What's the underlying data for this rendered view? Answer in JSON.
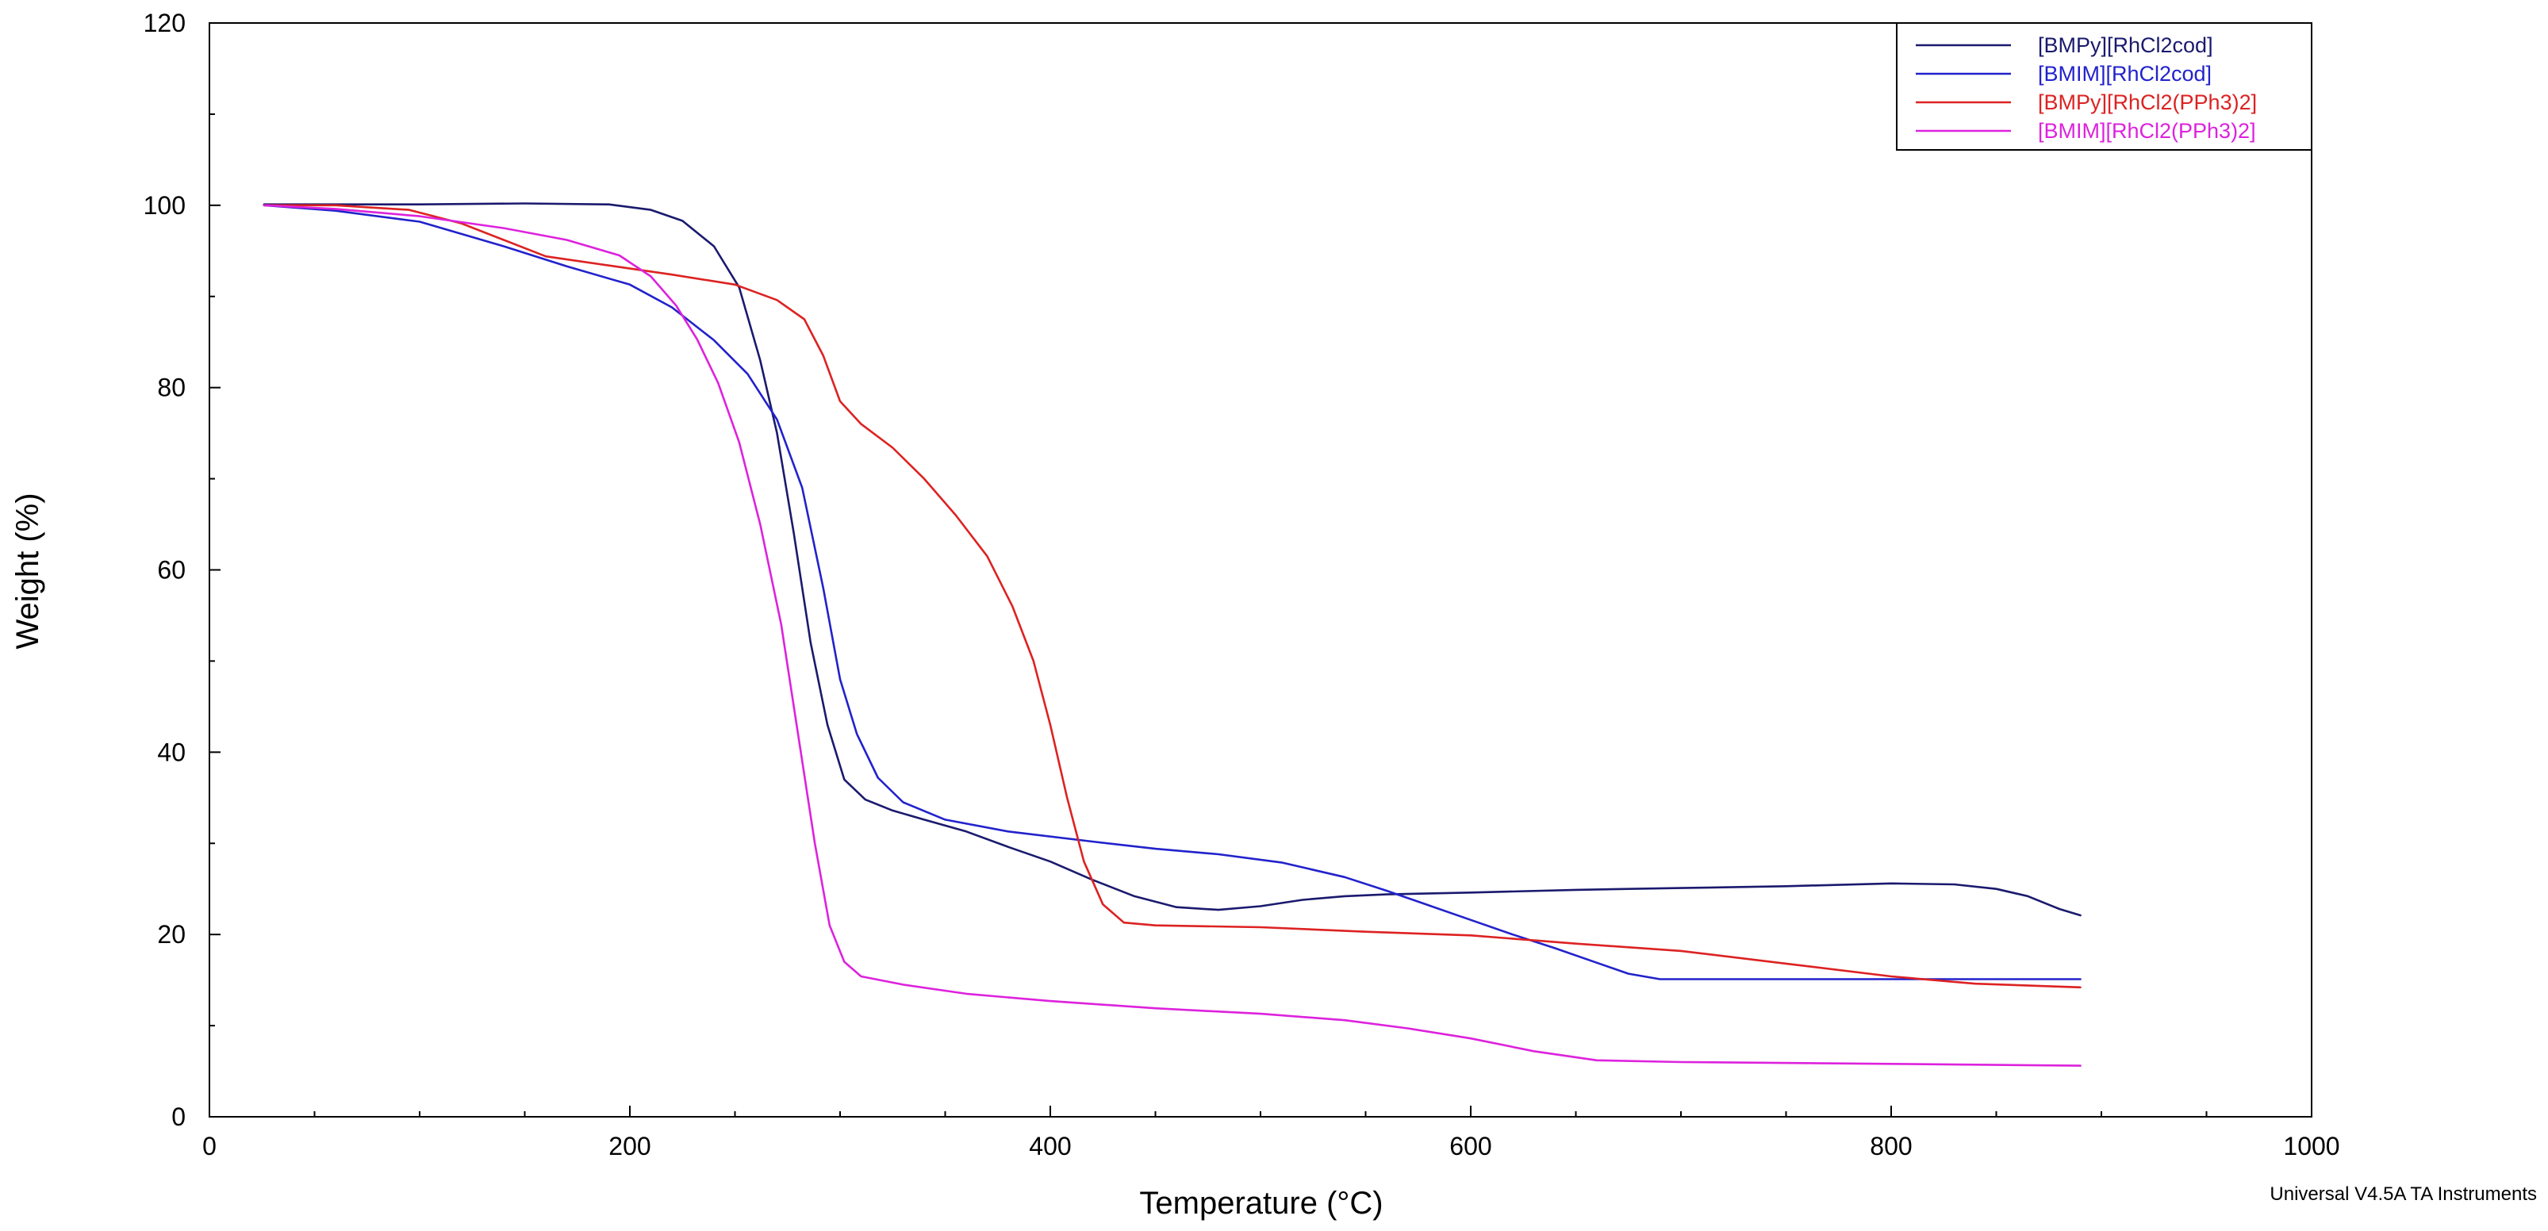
{
  "chart_data": {
    "type": "line",
    "xlabel": "Temperature (°C)",
    "ylabel": "Weight (%)",
    "xlim": [
      0,
      1000
    ],
    "ylim": [
      0,
      120
    ],
    "x_ticks": [
      0,
      200,
      400,
      600,
      800,
      1000
    ],
    "y_ticks": [
      0,
      20,
      40,
      60,
      80,
      100,
      120
    ],
    "grid": false,
    "legend_position": "top-right",
    "footer": "Universal V4.5A TA Instruments",
    "series": [
      {
        "name": "[BMPy][RhCl2cod]",
        "color": "#1a1a6e",
        "points": [
          [
            26,
            100.1
          ],
          [
            100,
            100.1
          ],
          [
            150,
            100.2
          ],
          [
            190,
            100.1
          ],
          [
            210,
            99.5
          ],
          [
            225,
            98.3
          ],
          [
            240,
            95.5
          ],
          [
            252,
            91
          ],
          [
            262,
            83
          ],
          [
            270,
            75
          ],
          [
            278,
            64
          ],
          [
            286,
            52
          ],
          [
            294,
            43
          ],
          [
            302,
            37
          ],
          [
            312,
            34.8
          ],
          [
            325,
            33.6
          ],
          [
            340,
            32.6
          ],
          [
            360,
            31.3
          ],
          [
            380,
            29.6
          ],
          [
            400,
            28
          ],
          [
            420,
            26
          ],
          [
            440,
            24.2
          ],
          [
            460,
            23
          ],
          [
            480,
            22.7
          ],
          [
            500,
            23.1
          ],
          [
            520,
            23.8
          ],
          [
            540,
            24.2
          ],
          [
            560,
            24.4
          ],
          [
            600,
            24.6
          ],
          [
            650,
            24.9
          ],
          [
            700,
            25.1
          ],
          [
            750,
            25.3
          ],
          [
            800,
            25.6
          ],
          [
            830,
            25.5
          ],
          [
            850,
            25
          ],
          [
            865,
            24.2
          ],
          [
            880,
            22.8
          ],
          [
            890,
            22.1
          ]
        ]
      },
      {
        "name": "[BMIM][RhCl2cod]",
        "color": "#2222cc",
        "points": [
          [
            26,
            100
          ],
          [
            60,
            99.4
          ],
          [
            100,
            98.2
          ],
          [
            140,
            95.5
          ],
          [
            170,
            93.3
          ],
          [
            200,
            91.3
          ],
          [
            220,
            88.8
          ],
          [
            240,
            85.2
          ],
          [
            256,
            81.5
          ],
          [
            270,
            76.5
          ],
          [
            282,
            69
          ],
          [
            292,
            58
          ],
          [
            300,
            48
          ],
          [
            308,
            42
          ],
          [
            318,
            37.2
          ],
          [
            330,
            34.5
          ],
          [
            350,
            32.6
          ],
          [
            380,
            31.3
          ],
          [
            420,
            30.2
          ],
          [
            450,
            29.4
          ],
          [
            480,
            28.8
          ],
          [
            510,
            27.9
          ],
          [
            540,
            26.3
          ],
          [
            560,
            24.8
          ],
          [
            580,
            23.2
          ],
          [
            600,
            21.6
          ],
          [
            620,
            20
          ],
          [
            640,
            18.5
          ],
          [
            660,
            16.9
          ],
          [
            675,
            15.7
          ],
          [
            690,
            15.1
          ],
          [
            750,
            15.1
          ],
          [
            890,
            15.1
          ]
        ]
      },
      {
        "name": "[BMPy][RhCl2(PPh3)2]",
        "color": "#dd2222",
        "points": [
          [
            26,
            100
          ],
          [
            60,
            100
          ],
          [
            95,
            99.5
          ],
          [
            120,
            98
          ],
          [
            140,
            96.2
          ],
          [
            160,
            94.4
          ],
          [
            190,
            93.4
          ],
          [
            220,
            92.4
          ],
          [
            250,
            91.3
          ],
          [
            270,
            89.6
          ],
          [
            283,
            87.5
          ],
          [
            292,
            83.5
          ],
          [
            300,
            78.5
          ],
          [
            310,
            76
          ],
          [
            325,
            73.4
          ],
          [
            340,
            70
          ],
          [
            355,
            66
          ],
          [
            370,
            61.5
          ],
          [
            382,
            56
          ],
          [
            392,
            50
          ],
          [
            400,
            43
          ],
          [
            408,
            35
          ],
          [
            416,
            28
          ],
          [
            425,
            23.3
          ],
          [
            435,
            21.3
          ],
          [
            450,
            21
          ],
          [
            500,
            20.8
          ],
          [
            550,
            20.3
          ],
          [
            600,
            19.9
          ],
          [
            650,
            19
          ],
          [
            700,
            18.2
          ],
          [
            750,
            16.8
          ],
          [
            800,
            15.4
          ],
          [
            840,
            14.6
          ],
          [
            890,
            14.2
          ]
        ]
      },
      {
        "name": "[BMIM][RhCl2(PPh3)2]",
        "color": "#dd22dd",
        "points": [
          [
            26,
            100
          ],
          [
            60,
            99.6
          ],
          [
            100,
            98.8
          ],
          [
            140,
            97.5
          ],
          [
            170,
            96.2
          ],
          [
            195,
            94.5
          ],
          [
            210,
            92.2
          ],
          [
            222,
            89
          ],
          [
            232,
            85.3
          ],
          [
            242,
            80.5
          ],
          [
            252,
            74
          ],
          [
            262,
            65
          ],
          [
            272,
            54
          ],
          [
            280,
            42
          ],
          [
            288,
            30
          ],
          [
            295,
            21
          ],
          [
            302,
            17
          ],
          [
            310,
            15.4
          ],
          [
            330,
            14.5
          ],
          [
            360,
            13.5
          ],
          [
            400,
            12.7
          ],
          [
            450,
            11.9
          ],
          [
            500,
            11.3
          ],
          [
            540,
            10.6
          ],
          [
            570,
            9.7
          ],
          [
            600,
            8.6
          ],
          [
            630,
            7.2
          ],
          [
            660,
            6.2
          ],
          [
            700,
            6
          ],
          [
            800,
            5.8
          ],
          [
            890,
            5.6
          ]
        ]
      }
    ]
  }
}
